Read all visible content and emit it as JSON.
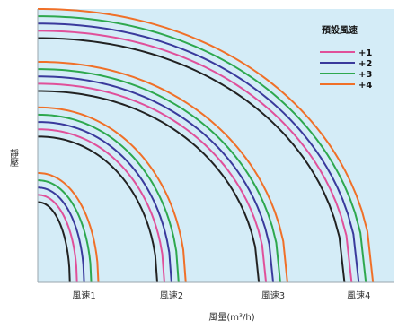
{
  "chart_data": {
    "type": "line",
    "title": "",
    "xlabel": "風量(m³/h)",
    "ylabel": "靜壓",
    "categories": [
      "風速1",
      "風速2",
      "風速3",
      "風速4"
    ],
    "legend": {
      "title": "預設風速",
      "placement": "top-right",
      "entries": [
        {
          "label": "+1",
          "color": "#e0509a"
        },
        {
          "label": "+2",
          "color": "#3a3a9c"
        },
        {
          "label": "+3",
          "color": "#2ea84e"
        },
        {
          "label": "+4",
          "color": "#f07028"
        }
      ]
    },
    "base_series_color": "#222222",
    "background_color": "#d4ecf7",
    "grid": false,
    "xlim": [
      0,
      400
    ],
    "ylim": [
      0,
      300
    ],
    "groups": [
      {
        "category": "風速1",
        "curves": [
          {
            "style": "base",
            "y0": 88,
            "x_end": 36
          },
          {
            "style": "+1",
            "y0": 96,
            "x_end": 44
          },
          {
            "style": "+2",
            "y0": 104,
            "x_end": 52
          },
          {
            "style": "+3",
            "y0": 112,
            "x_end": 60
          },
          {
            "style": "+4",
            "y0": 120,
            "x_end": 68
          }
        ]
      },
      {
        "category": "風速2",
        "curves": [
          {
            "style": "base",
            "y0": 160,
            "x_end": 134
          },
          {
            "style": "+1",
            "y0": 168,
            "x_end": 142
          },
          {
            "style": "+2",
            "y0": 176,
            "x_end": 150
          },
          {
            "style": "+3",
            "y0": 184,
            "x_end": 158
          },
          {
            "style": "+4",
            "y0": 192,
            "x_end": 166
          }
        ]
      },
      {
        "category": "風速3",
        "curves": [
          {
            "style": "base",
            "y0": 210,
            "x_end": 248
          },
          {
            "style": "+1",
            "y0": 218,
            "x_end": 256
          },
          {
            "style": "+2",
            "y0": 226,
            "x_end": 264
          },
          {
            "style": "+3",
            "y0": 234,
            "x_end": 272
          },
          {
            "style": "+4",
            "y0": 242,
            "x_end": 280
          }
        ]
      },
      {
        "category": "風速4",
        "curves": [
          {
            "style": "base",
            "y0": 268,
            "x_end": 344
          },
          {
            "style": "+1",
            "y0": 276,
            "x_end": 352
          },
          {
            "style": "+2",
            "y0": 284,
            "x_end": 360
          },
          {
            "style": "+3",
            "y0": 292,
            "x_end": 368
          },
          {
            "style": "+4",
            "y0": 300,
            "x_end": 376
          }
        ]
      }
    ]
  }
}
